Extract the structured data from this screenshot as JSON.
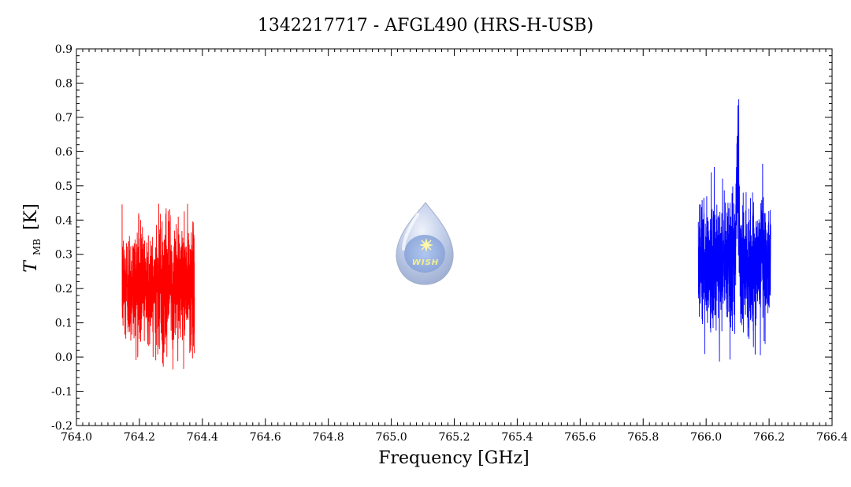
{
  "chart_data": {
    "type": "line",
    "title": "1342217717 - AFGL490 (HRS-H-USB)",
    "xlabel": "Frequency [GHz]",
    "ylabel_main": "T",
    "ylabel_sub": "MB",
    "ylabel_unit": "[K]",
    "xlim": [
      764.0,
      766.4
    ],
    "ylim": [
      -0.2,
      0.9
    ],
    "x_ticks": [
      "764.0",
      "764.2",
      "764.4",
      "764.6",
      "764.8",
      "765.0",
      "765.2",
      "765.4",
      "765.6",
      "765.8",
      "766.0",
      "766.2",
      "766.4"
    ],
    "y_ticks": [
      "-0.2",
      "-0.1",
      "0.0",
      "0.1",
      "0.2",
      "0.3",
      "0.4",
      "0.5",
      "0.6",
      "0.7",
      "0.8",
      "0.9"
    ],
    "grid": false,
    "series": [
      {
        "color": "#ff0000",
        "x_range": [
          764.145,
          764.375
        ],
        "baseline": 0.21,
        "noise_rms": 0.085,
        "min": -0.045,
        "max": 0.505,
        "line_features": []
      },
      {
        "color": "#0000ff",
        "x_range": [
          765.975,
          766.205
        ],
        "baseline": 0.27,
        "noise_rms": 0.095,
        "min": -0.08,
        "max": 0.8,
        "line_features": [
          {
            "center": 766.1,
            "peak": 0.6,
            "width": 0.004
          }
        ]
      }
    ],
    "logo_text": "WISH"
  }
}
